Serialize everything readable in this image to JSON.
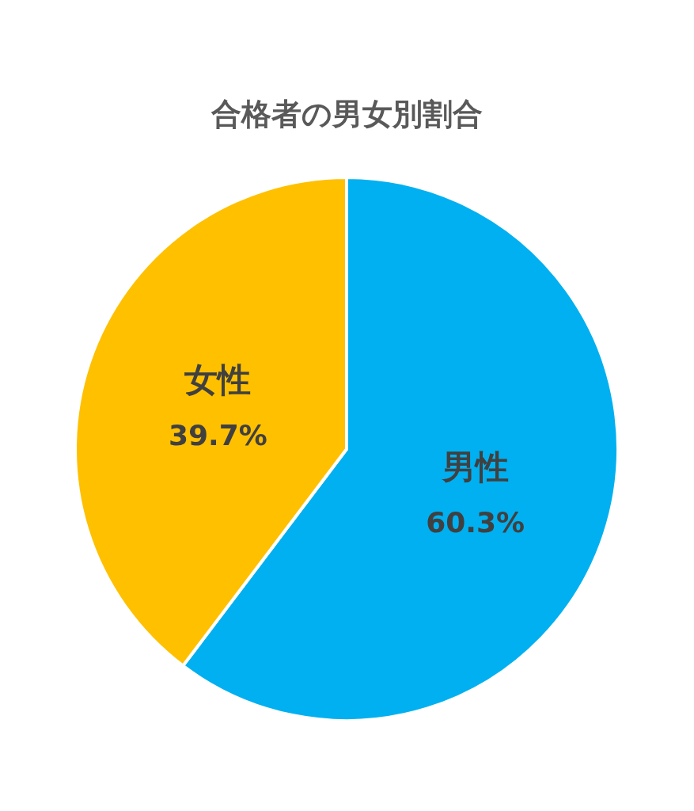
{
  "chart_data": {
    "type": "pie",
    "title": "合格者の男女別割合",
    "categories": [
      "男性",
      "女性"
    ],
    "values": [
      60.3,
      39.7
    ],
    "colors": [
      "#00b0f0",
      "#ffc000"
    ],
    "value_labels": [
      "60.3%",
      "39.7%"
    ]
  }
}
